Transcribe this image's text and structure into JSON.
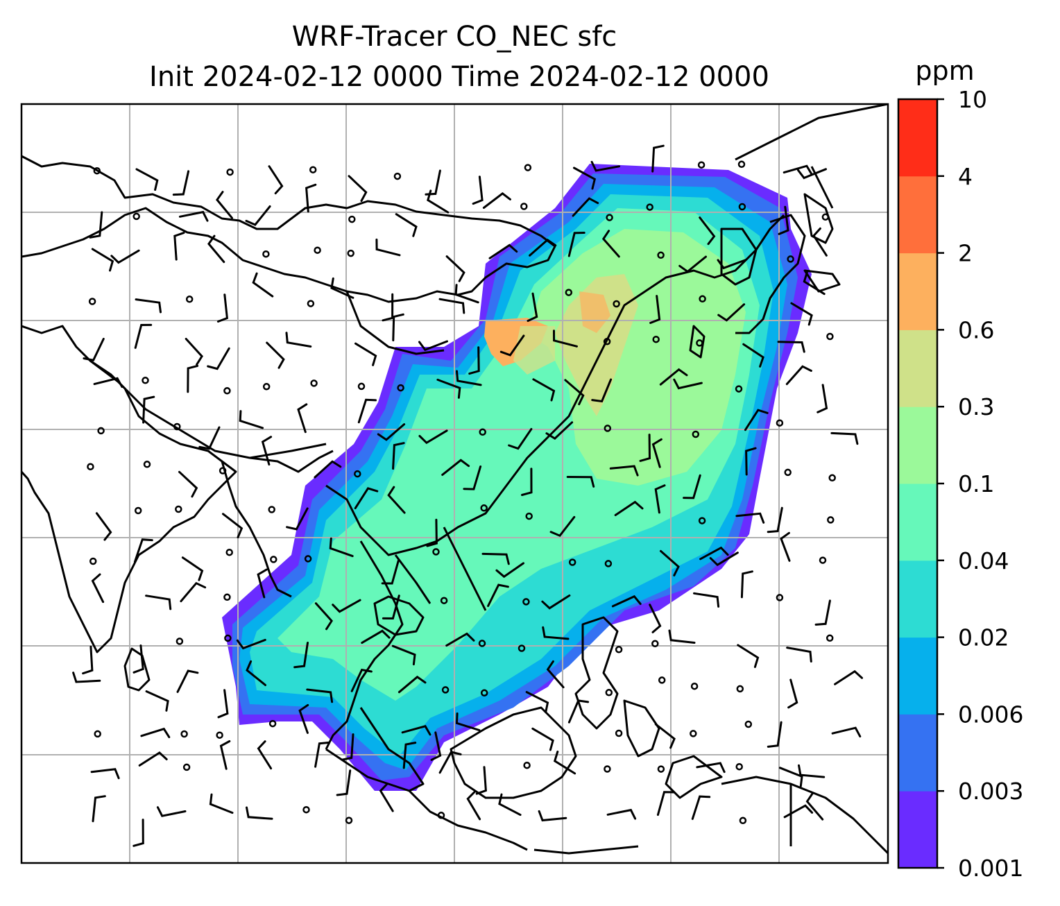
{
  "title": {
    "line1": "WRF-Tracer CO_NEC sfc",
    "line2": "Init 2024-02-12 0000 Time 2024-02-12 0000"
  },
  "colorbar": {
    "unit": "ppm",
    "levels": [
      "0.001",
      "0.003",
      "0.006",
      "0.02",
      "0.04",
      "0.1",
      "0.3",
      "0.6",
      "2",
      "4",
      "10"
    ],
    "colors": [
      "#6a2cff",
      "#3572f2",
      "#06b0ec",
      "#2ddcd3",
      "#66f8ba",
      "#9bf99a",
      "#cfe189",
      "#fdb05e",
      "#ff6f3b",
      "#ff2d18"
    ]
  },
  "map": {
    "field": "CO_NEC tracer concentration (surface)",
    "plume_shading": "filled contours over eastern China, Southeast Asia and the South China Sea",
    "overlays": [
      "coastlines",
      "country borders",
      "lat/lon gridlines",
      "wind barbs"
    ],
    "wind_barb_symbol": "calm-circle-and-barb"
  }
}
